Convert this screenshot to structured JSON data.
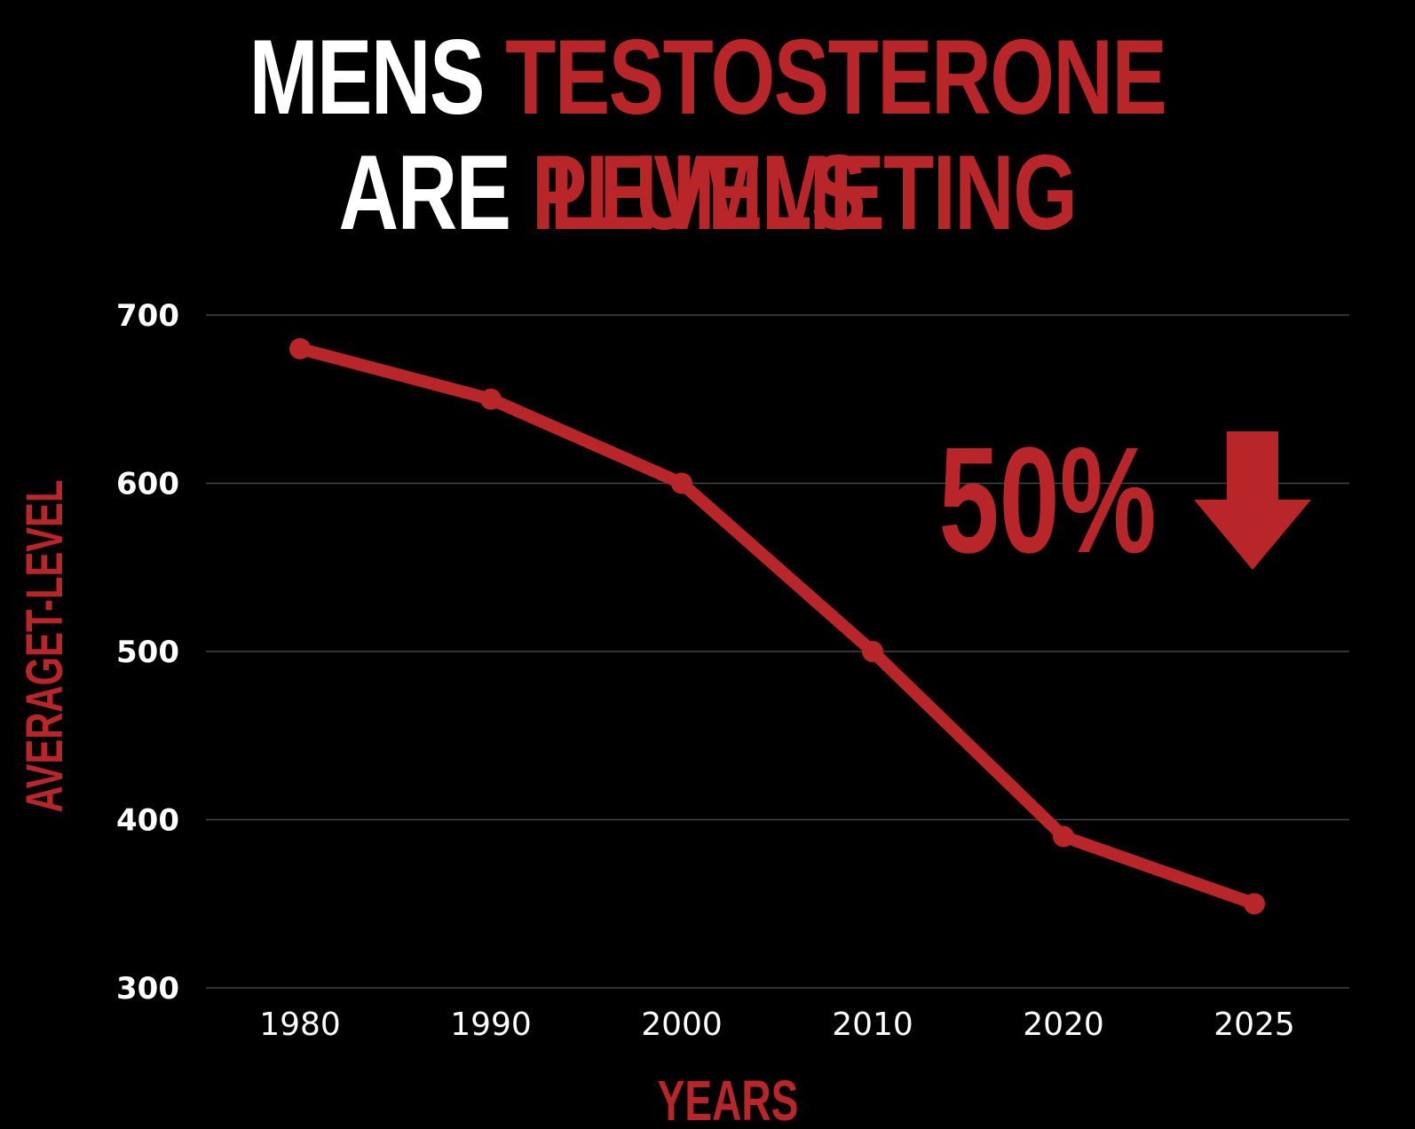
{
  "title": {
    "line1_white": "MENS",
    "line1_red": "TESTOSTERONE LEVELS",
    "line2_white": "ARE",
    "line2_red": "PLUMMETING"
  },
  "colors": {
    "background": "#000000",
    "accent": "#b8262a",
    "text": "#ffffff",
    "grid": "#444444"
  },
  "callout": {
    "text": "50%",
    "icon": "down-arrow-icon"
  },
  "chart_data": {
    "type": "line",
    "categories": [
      "1980",
      "1990",
      "2000",
      "2010",
      "2020",
      "2025"
    ],
    "series": [
      {
        "values": [
          680,
          650,
          600,
          500,
          390,
          350
        ]
      }
    ],
    "xlabel": "YEARS",
    "ylabel": "AVERAGET-LEVEL",
    "ylim": [
      300,
      700
    ],
    "yticks": [
      300,
      400,
      500,
      600,
      700
    ],
    "grid": true
  }
}
